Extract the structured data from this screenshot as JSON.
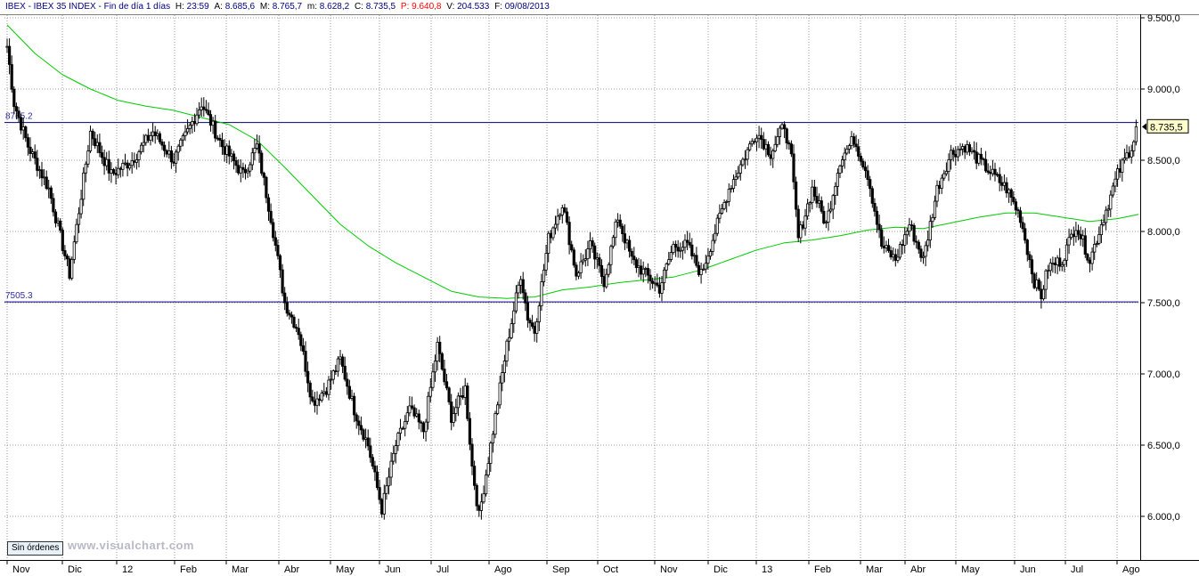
{
  "header": {
    "symbol": "IBEX - IBEX 35 INDEX - Fin de día 1 días",
    "h_label": "H:",
    "h_value": "23:59",
    "a_label": "A:",
    "a_value": "8.685,6",
    "m_label": "M:",
    "m_value": "8.765,7",
    "mn_label": "m:",
    "mn_value": "8.628,2",
    "c_label": "C:",
    "c_value": "8.735,5",
    "p_label": "P",
    "p_value": ": 9.640,8",
    "v_label": "V:",
    "v_value": "204.533",
    "f_label": "F:",
    "f_value": "09/08/2013"
  },
  "buttons": {
    "orders": "Sin órdenes"
  },
  "watermark": "www.visualchart.com",
  "colors": {
    "price": "#000000",
    "ma": "#00cc00",
    "hline": "#000080",
    "last_bg": "#ffffcc",
    "p_red": "#ff0000",
    "header_blue": "#000080"
  },
  "chart_data": {
    "type": "candlestick",
    "ylim": [
      5800,
      9550
    ],
    "y_ticks": [
      6000,
      6500,
      7000,
      7500,
      8000,
      8500,
      9000,
      9500
    ],
    "y_tick_labels": [
      "6.000,0",
      "6.500,0",
      "7.000,0",
      "7.500,0",
      "8.000,0",
      "8.500,0",
      "9.000,0",
      "9.500,0"
    ],
    "x_labels": [
      "Nov",
      "Dic",
      "12",
      "Feb",
      "Mar",
      "Abr",
      "May",
      "Jun",
      "Jul",
      "Ago",
      "Sep",
      "Oct",
      "Nov",
      "Dic",
      "13",
      "Feb",
      "Mar",
      "Abr",
      "May",
      "Jun",
      "Jul",
      "Ago"
    ],
    "hlines": [
      {
        "value": 8765.2,
        "label": "8765.2"
      },
      {
        "value": 7505.3,
        "label": "7505.3"
      }
    ],
    "last_value": 8735.5,
    "last_label": "8.735,5",
    "price_path": [
      [
        0,
        9300
      ],
      [
        1,
        8900
      ],
      [
        3,
        8600
      ],
      [
        6,
        8300
      ],
      [
        9,
        7700
      ],
      [
        12,
        8700
      ],
      [
        15,
        8400
      ],
      [
        18,
        8500
      ],
      [
        21,
        8700
      ],
      [
        24,
        8500
      ],
      [
        28,
        8900
      ],
      [
        31,
        8600
      ],
      [
        34,
        8400
      ],
      [
        36,
        8600
      ],
      [
        38,
        8100
      ],
      [
        40,
        7500
      ],
      [
        42,
        7300
      ],
      [
        44,
        6800
      ],
      [
        46,
        6900
      ],
      [
        48,
        7100
      ],
      [
        50,
        6750
      ],
      [
        52,
        6500
      ],
      [
        54,
        6050
      ],
      [
        56,
        6500
      ],
      [
        58,
        6750
      ],
      [
        60,
        6600
      ],
      [
        62,
        7200
      ],
      [
        64,
        6700
      ],
      [
        66,
        6900
      ],
      [
        67,
        6350
      ],
      [
        68,
        6000
      ],
      [
        70,
        6600
      ],
      [
        72,
        7200
      ],
      [
        74,
        7700
      ],
      [
        75,
        7400
      ],
      [
        76,
        7300
      ],
      [
        78,
        7950
      ],
      [
        80,
        8200
      ],
      [
        82,
        7700
      ],
      [
        84,
        7900
      ],
      [
        86,
        7650
      ],
      [
        88,
        8100
      ],
      [
        90,
        7800
      ],
      [
        92,
        7700
      ],
      [
        94,
        7600
      ],
      [
        96,
        7900
      ],
      [
        98,
        7900
      ],
      [
        100,
        7700
      ],
      [
        102,
        8000
      ],
      [
        104,
        8300
      ],
      [
        106,
        8500
      ],
      [
        108,
        8700
      ],
      [
        110,
        8550
      ],
      [
        112,
        8750
      ],
      [
        113,
        8500
      ],
      [
        114,
        7950
      ],
      [
        116,
        8300
      ],
      [
        118,
        8050
      ],
      [
        120,
        8500
      ],
      [
        122,
        8650
      ],
      [
        124,
        8400
      ],
      [
        126,
        7900
      ],
      [
        128,
        7800
      ],
      [
        130,
        8050
      ],
      [
        132,
        7800
      ],
      [
        134,
        8300
      ],
      [
        136,
        8550
      ],
      [
        138,
        8600
      ],
      [
        140,
        8500
      ],
      [
        142,
        8400
      ],
      [
        144,
        8300
      ],
      [
        146,
        8100
      ],
      [
        148,
        7650
      ],
      [
        149,
        7550
      ],
      [
        150,
        7750
      ],
      [
        152,
        7800
      ],
      [
        154,
        8050
      ],
      [
        156,
        7800
      ],
      [
        158,
        8100
      ],
      [
        160,
        8400
      ],
      [
        162,
        8600
      ],
      [
        163,
        8736
      ]
    ],
    "ma_path": [
      [
        0,
        9450
      ],
      [
        4,
        9250
      ],
      [
        8,
        9100
      ],
      [
        12,
        9000
      ],
      [
        16,
        8920
      ],
      [
        20,
        8880
      ],
      [
        24,
        8850
      ],
      [
        28,
        8800
      ],
      [
        32,
        8750
      ],
      [
        36,
        8640
      ],
      [
        40,
        8450
      ],
      [
        44,
        8250
      ],
      [
        48,
        8050
      ],
      [
        52,
        7900
      ],
      [
        56,
        7780
      ],
      [
        60,
        7680
      ],
      [
        64,
        7580
      ],
      [
        68,
        7540
      ],
      [
        72,
        7530
      ],
      [
        76,
        7540
      ],
      [
        80,
        7590
      ],
      [
        84,
        7610
      ],
      [
        88,
        7640
      ],
      [
        92,
        7660
      ],
      [
        96,
        7680
      ],
      [
        100,
        7730
      ],
      [
        104,
        7800
      ],
      [
        108,
        7870
      ],
      [
        112,
        7920
      ],
      [
        116,
        7940
      ],
      [
        120,
        7970
      ],
      [
        124,
        8010
      ],
      [
        128,
        8030
      ],
      [
        132,
        8020
      ],
      [
        136,
        8060
      ],
      [
        140,
        8100
      ],
      [
        144,
        8130
      ],
      [
        148,
        8130
      ],
      [
        152,
        8100
      ],
      [
        156,
        8070
      ],
      [
        160,
        8090
      ],
      [
        163,
        8120
      ]
    ]
  }
}
